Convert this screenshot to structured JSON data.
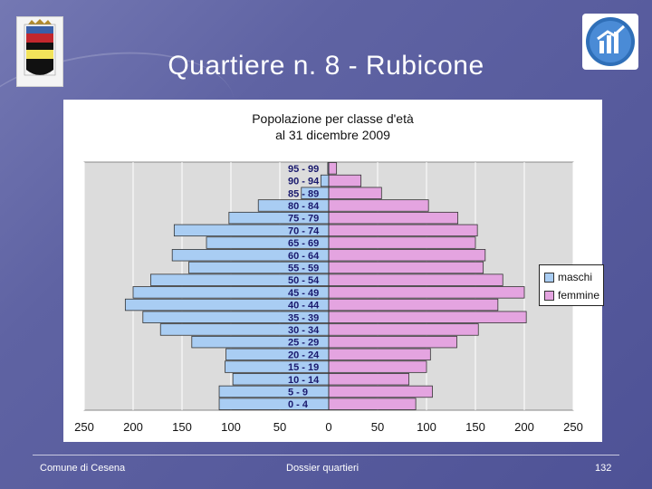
{
  "slide": {
    "title": "Quartiere n. 8 - Rubicone",
    "footer_left": "Comune di Cesena",
    "footer_center": "Dossier quartieri",
    "footer_right": "132"
  },
  "chart_data": {
    "type": "bar",
    "orientation": "horizontal",
    "subtype": "population-pyramid",
    "title": "Popolazione per classe d'età",
    "subtitle": "al 31 dicembre 2009",
    "categories": [
      "95 - 99",
      "90 - 94",
      "85 - 89",
      "80 - 84",
      "75 - 79",
      "70 - 74",
      "65 - 69",
      "60 - 64",
      "55 - 59",
      "50 - 54",
      "45 - 49",
      "40 - 44",
      "35 - 39",
      "30 - 34",
      "25 - 29",
      "20 - 24",
      "15 - 19",
      "10 - 14",
      "5 - 9",
      "0 - 4"
    ],
    "series": [
      {
        "name": "maschi",
        "values": [
          1,
          8,
          28,
          72,
          102,
          158,
          125,
          160,
          143,
          182,
          200,
          208,
          190,
          172,
          140,
          105,
          106,
          98,
          112,
          112
        ],
        "color": "#a9cdf3"
      },
      {
        "name": "femmine",
        "values": [
          8,
          33,
          54,
          102,
          132,
          152,
          150,
          160,
          158,
          178,
          200,
          173,
          202,
          153,
          131,
          104,
          100,
          82,
          106,
          89
        ],
        "color": "#e4a4e0"
      }
    ],
    "x_ticks": [
      "250",
      "200",
      "150",
      "100",
      "50",
      "0",
      "50",
      "100",
      "150",
      "200",
      "250"
    ],
    "xlim": [
      -250,
      250
    ],
    "grid": true,
    "plot_background": "#dcdcdc",
    "legend_position": "right"
  },
  "icons": {
    "crest": "city-crest-icon",
    "app": "chart-logo-icon"
  }
}
